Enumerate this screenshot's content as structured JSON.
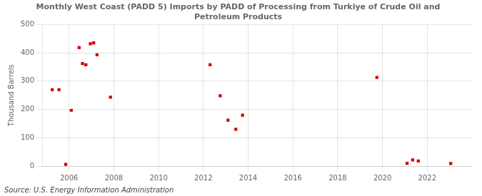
{
  "chart_data": {
    "type": "scatter",
    "title": "Monthly West Coast (PADD 5) Imports by PADD of Processing from Turkiye of Crude Oil and\nPetroleum Products",
    "ylabel": "Thousand Barrels",
    "annotations": [
      "Source: U.S. Energy Information Administration"
    ],
    "color": "#cc0000",
    "marker": "square",
    "grid": true,
    "xlim": [
      2004.8,
      2024.0
    ],
    "ylim": [
      0,
      500
    ],
    "xticks": [
      2006,
      2008,
      2010,
      2012,
      2014,
      2016,
      2018,
      2020,
      2022
    ],
    "yticks": [
      0,
      100,
      200,
      300,
      400,
      500
    ],
    "x": [
      2005.25,
      2005.55,
      2005.85,
      2006.1,
      2006.45,
      2006.6,
      2006.75,
      2006.95,
      2007.1,
      2007.25,
      2007.85,
      2012.3,
      2012.75,
      2013.1,
      2013.45,
      2013.75,
      2019.75,
      2021.1,
      2021.35,
      2021.6,
      2023.05
    ],
    "values": [
      270,
      270,
      6,
      197,
      418,
      362,
      358,
      432,
      435,
      393,
      243,
      358,
      248,
      162,
      130,
      180,
      313,
      10,
      22,
      18,
      9
    ]
  }
}
